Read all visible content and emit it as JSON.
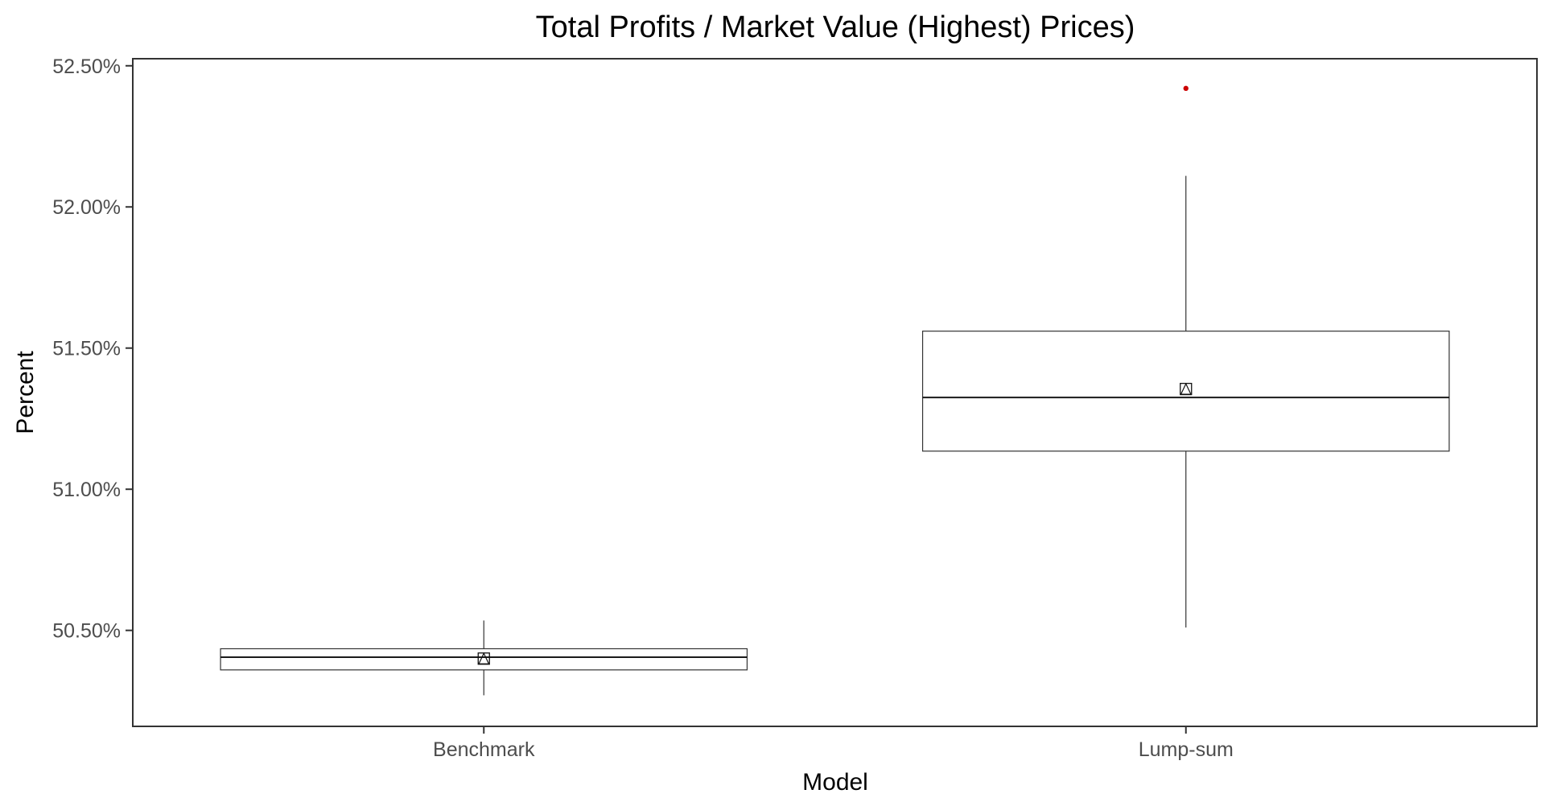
{
  "chart_data": {
    "type": "boxplot",
    "title": "Total Profits / Market Value (Highest) Prices)",
    "xlabel": "Model",
    "ylabel": "Percent",
    "categories": [
      "Benchmark",
      "Lump-sum"
    ],
    "ylim": [
      50.16,
      52.525
    ],
    "y_ticks": [
      50.5,
      51.0,
      51.5,
      52.0,
      52.5
    ],
    "y_tick_labels": [
      "50.50%",
      "51.00%",
      "51.50%",
      "52.00%",
      "52.50%"
    ],
    "grid": false,
    "legend": "none",
    "boxes": [
      {
        "category": "Benchmark",
        "whisker_low": 50.27,
        "q1": 50.36,
        "median": 50.405,
        "q3": 50.435,
        "whisker_high": 50.535,
        "mean": 50.4,
        "outliers": []
      },
      {
        "category": "Lump-sum",
        "whisker_low": 50.51,
        "q1": 51.135,
        "median": 51.325,
        "q3": 51.56,
        "whisker_high": 52.11,
        "mean": 51.355,
        "outliers": [
          52.42
        ]
      }
    ],
    "colors": {
      "box_stroke": "#333333",
      "outlier": "#cc0000",
      "tick_label": "#4d4d4d",
      "panel_border": "#333333"
    }
  }
}
